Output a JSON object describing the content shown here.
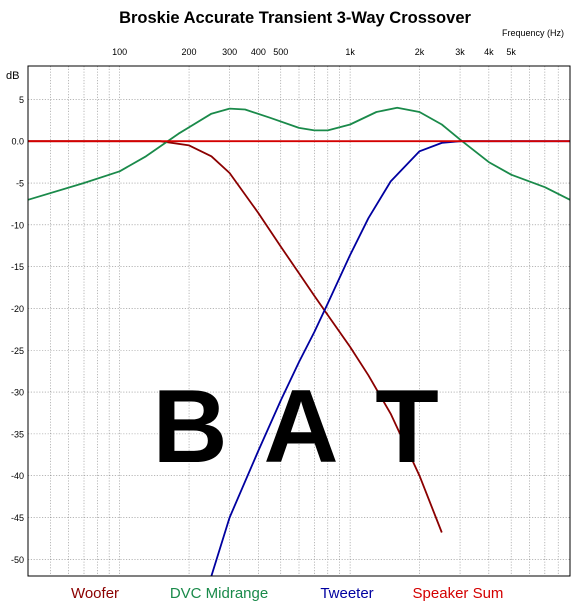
{
  "chart_data": {
    "type": "line",
    "title": "Broskie Accurate Transient 3-Way Crossover",
    "xlabel": "Frequency   (Hz)",
    "ylabel": "dB",
    "x_scale": "log",
    "xlim": [
      40,
      9000
    ],
    "ylim": [
      -52,
      9
    ],
    "grid": true,
    "legend_position": "bottom",
    "x_ticks": [
      {
        "value": 100,
        "label": "100"
      },
      {
        "value": 200,
        "label": "200"
      },
      {
        "value": 300,
        "label": "300"
      },
      {
        "value": 400,
        "label": "400"
      },
      {
        "value": 500,
        "label": "500"
      },
      {
        "value": 1000,
        "label": "1k"
      },
      {
        "value": 2000,
        "label": "2k"
      },
      {
        "value": 3000,
        "label": "3k"
      },
      {
        "value": 4000,
        "label": "4k"
      },
      {
        "value": 5000,
        "label": "5k"
      }
    ],
    "x_minor_grid": [
      40,
      50,
      60,
      70,
      80,
      90,
      600,
      700,
      800,
      900,
      6000,
      7000,
      8000,
      9000
    ],
    "y_ticks": [
      {
        "value": 5,
        "label": "5"
      },
      {
        "value": 0,
        "label": "0.0"
      },
      {
        "value": -5,
        "label": "-5"
      },
      {
        "value": -10,
        "label": "-10"
      },
      {
        "value": -15,
        "label": "-15"
      },
      {
        "value": -20,
        "label": "-20"
      },
      {
        "value": -25,
        "label": "-25"
      },
      {
        "value": -30,
        "label": "-30"
      },
      {
        "value": -35,
        "label": "-35"
      },
      {
        "value": -40,
        "label": "-40"
      },
      {
        "value": -45,
        "label": "-45"
      },
      {
        "value": -50,
        "label": "-50"
      }
    ],
    "series": [
      {
        "name": "Woofer",
        "color": "#8b0000",
        "x": [
          40,
          100,
          150,
          200,
          250,
          300,
          400,
          500,
          600,
          700,
          800,
          1000,
          1200,
          1500,
          2000,
          2500
        ],
        "y": [
          0,
          0,
          0,
          -0.5,
          -1.8,
          -3.8,
          -8.6,
          -12.6,
          -15.8,
          -18.5,
          -20.8,
          -24.6,
          -28,
          -32.6,
          -40,
          -46.8
        ]
      },
      {
        "name": "DVC Midrange",
        "color": "#1a8a4a",
        "x": [
          40,
          70,
          100,
          130,
          180,
          250,
          300,
          350,
          450,
          600,
          700,
          800,
          1000,
          1300,
          1600,
          2000,
          2500,
          3000,
          4000,
          5000,
          7000,
          9000
        ],
        "y": [
          -7,
          -5,
          -3.6,
          -1.8,
          0.9,
          3.3,
          3.9,
          3.8,
          2.8,
          1.6,
          1.3,
          1.3,
          2,
          3.5,
          4,
          3.5,
          2,
          0.2,
          -2.5,
          -4,
          -5.5,
          -7
        ]
      },
      {
        "name": "Tweeter",
        "color": "#0000a0",
        "x": [
          250,
          300,
          400,
          500,
          600,
          700,
          800,
          1000,
          1200,
          1500,
          2000,
          2500,
          3000,
          9000
        ],
        "y": [
          -52,
          -45,
          -37,
          -31,
          -26.4,
          -22.8,
          -19.4,
          -13.6,
          -9.2,
          -4.8,
          -1.2,
          -0.2,
          0,
          0
        ]
      },
      {
        "name": "Speaker Sum",
        "color": "#d40000",
        "x": [
          40,
          9000
        ],
        "y": [
          0,
          0
        ]
      }
    ],
    "annotations": [
      {
        "text": "B"
      },
      {
        "text": "A"
      },
      {
        "text": "T"
      }
    ]
  }
}
